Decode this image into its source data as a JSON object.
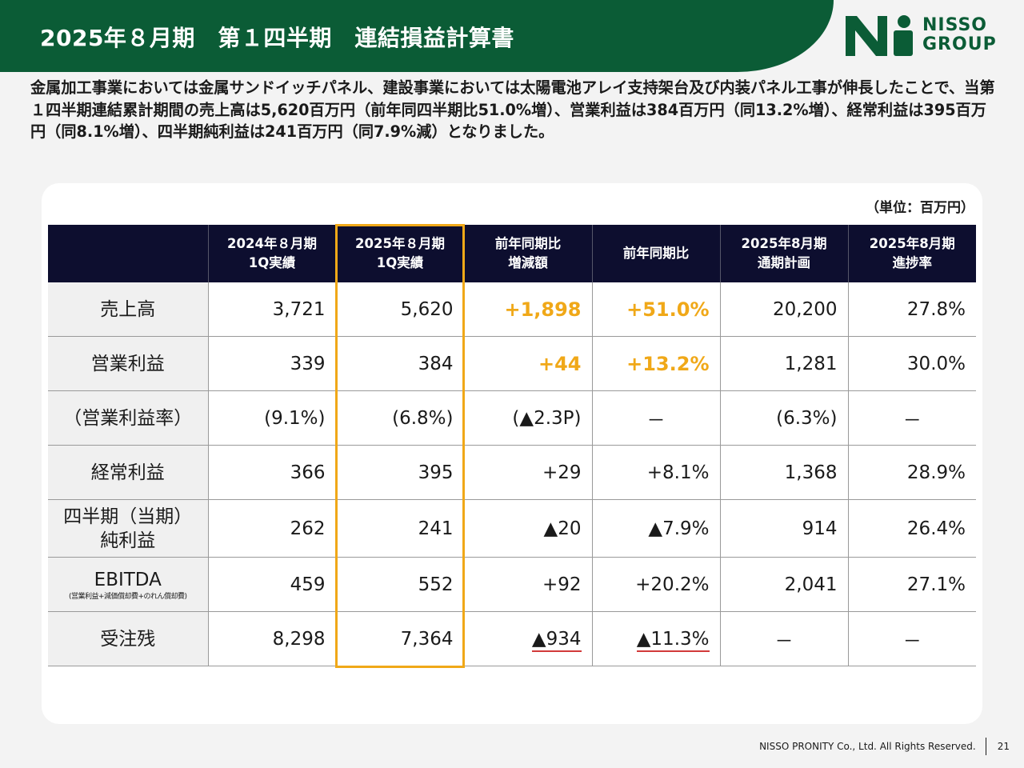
{
  "header": {
    "title": "2025年８月期　第１四半期　連結損益計算書",
    "logo_text_line1": "NISSO",
    "logo_text_line2": "GROUP",
    "logo_mark": "ni-logo-icon",
    "brand_color": "#0b5c36"
  },
  "intro": "金属加工事業においては金属サンドイッチパネル、建設事業においては太陽電池アレイ支持架台及び内装パネル工事が伸長したことで、当第１四半期連結累計期間の売上高は5,620百万円（前年同四半期比51.0%増）、営業利益は384百万円（同13.2%増）、経常利益は395百万円（同8.1%増）、四半期純利益は241百万円（同7.9%減）となりました。",
  "table": {
    "unit": "（単位：百万円）",
    "headers": [
      "",
      "2024年８月期\n1Q実績",
      "2025年８月期\n1Q実績",
      "前年同期比\n増減額",
      "前年同期比",
      "2025年8月期\n通期計画",
      "2025年8月期\n進捗率"
    ],
    "rows": [
      {
        "label": "売上高",
        "sub": "",
        "v2024": "3,721",
        "v2025": "5,620",
        "diff": "+1,898",
        "ratio": "+51.0%",
        "plan": "20,200",
        "progress": "27.8%"
      },
      {
        "label": "営業利益",
        "sub": "",
        "v2024": "339",
        "v2025": "384",
        "diff": "+44",
        "ratio": "+13.2%",
        "plan": "1,281",
        "progress": "30.0%"
      },
      {
        "label": "（営業利益率）",
        "sub": "",
        "v2024": "(9.1%)",
        "v2025": "(6.8%)",
        "diff": "(▲2.3P)",
        "ratio": "－",
        "plan": "(6.3%)",
        "progress": "－"
      },
      {
        "label": "経常利益",
        "sub": "",
        "v2024": "366",
        "v2025": "395",
        "diff": "+29",
        "ratio": "+8.1%",
        "plan": "1,368",
        "progress": "28.9%"
      },
      {
        "label": "四半期（当期）\n純利益",
        "sub": "",
        "v2024": "262",
        "v2025": "241",
        "diff": "▲20",
        "ratio": "▲7.9%",
        "plan": "914",
        "progress": "26.4%"
      },
      {
        "label": "EBITDA",
        "sub": "(営業利益+減価償却費+のれん償却費)",
        "v2024": "459",
        "v2025": "552",
        "diff": "+92",
        "ratio": "+20.2%",
        "plan": "2,041",
        "progress": "27.1%"
      },
      {
        "label": "受注残",
        "sub": "",
        "v2024": "8,298",
        "v2025": "7,364",
        "diff": "▲934",
        "ratio": "▲11.3%",
        "plan": "－",
        "progress": "－"
      }
    ],
    "highlight_color": "#f0a818",
    "negative_underline_color": "#d23a3a"
  },
  "footer": {
    "copyright": "NISSO PRONITY Co., Ltd. All Rights Reserved.",
    "page_number": "21"
  }
}
